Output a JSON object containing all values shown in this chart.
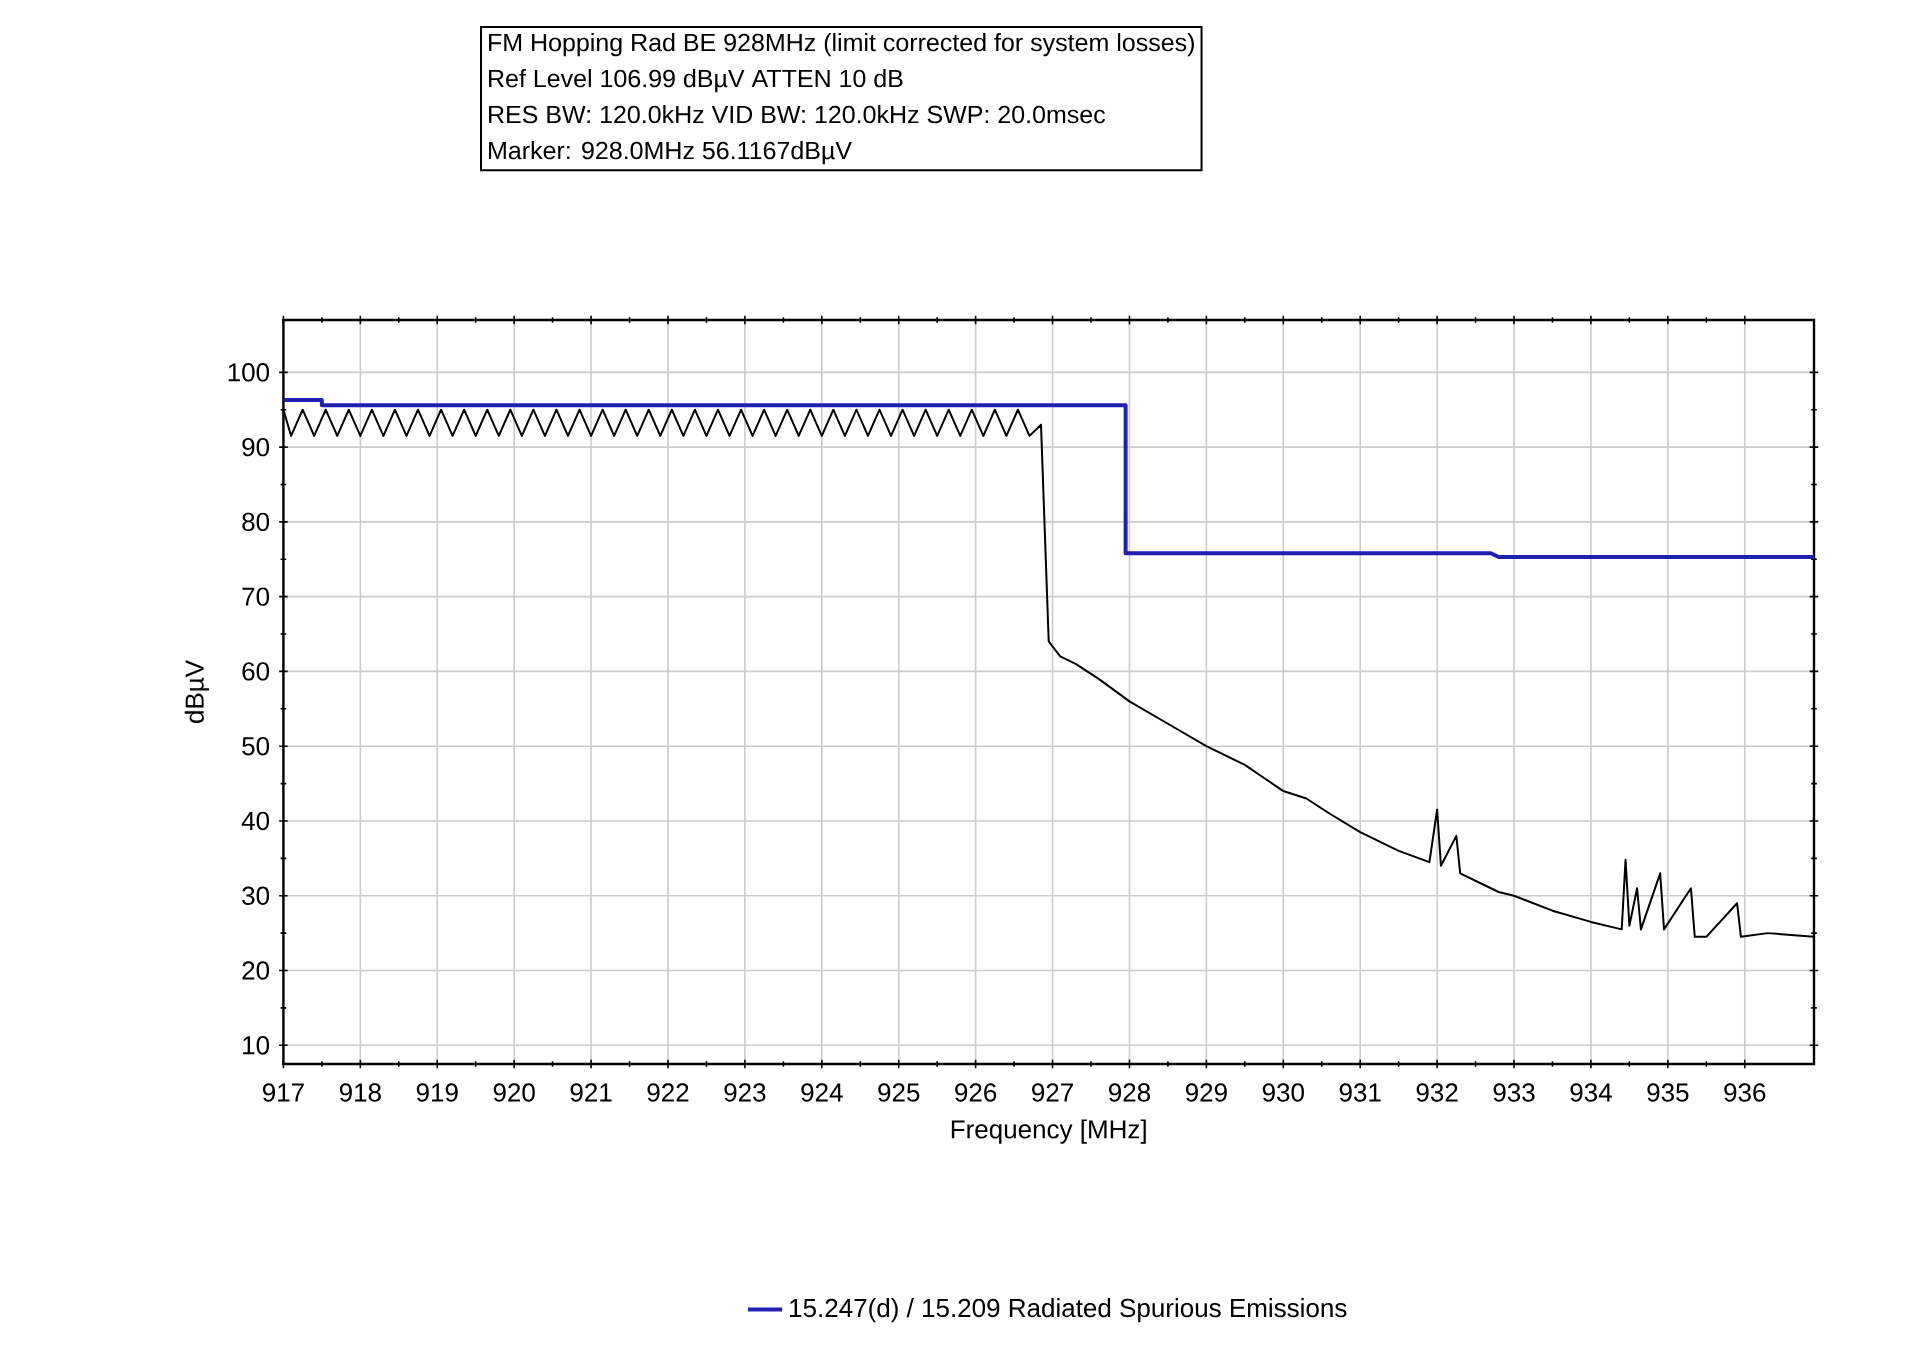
{
  "chart_data": {
    "type": "line",
    "title": "FM Hopping Rad BE 928MHz (limit corrected for system losses)",
    "annotations": [
      "Ref Level 106.99 dBµV    ATTEN 10 dB",
      "RES BW: 120.0kHz  VID BW: 120.0kHz  SWP: 20.0msec",
      "Marker: 928.0MHz  56.1167dBµV"
    ],
    "xlabel": "Frequency [MHz]",
    "ylabel": "dBµV",
    "xlim": [
      917,
      936.9
    ],
    "ylim": [
      7.5,
      107
    ],
    "xticks": [
      917,
      918,
      919,
      920,
      921,
      922,
      923,
      924,
      925,
      926,
      927,
      928,
      929,
      930,
      931,
      932,
      933,
      934,
      935,
      936
    ],
    "yticks": [
      10,
      20,
      30,
      40,
      50,
      60,
      70,
      80,
      90,
      100
    ],
    "grid": true,
    "legend": "bottom",
    "marker": "none",
    "line_style": "solid",
    "series": [
      {
        "name": "15.247(d) / 15.209 Radiated Spurious Emissions",
        "color": "#1f1fb4",
        "x": [
          917,
          917.5,
          917.5,
          927.95,
          927.95,
          932.7,
          932.8,
          936.9
        ],
        "values": [
          96.3,
          96.3,
          95.6,
          95.6,
          75.8,
          75.8,
          75.3,
          75.3
        ]
      },
      {
        "color": "#000000",
        "x": [
          917,
          917.1,
          917.25,
          917.4,
          917.55,
          917.7,
          917.85,
          918,
          918.15,
          918.3,
          918.45,
          918.6,
          918.75,
          918.9,
          919.05,
          919.2,
          919.35,
          919.5,
          919.65,
          919.8,
          919.95,
          920.1,
          920.25,
          920.4,
          920.55,
          920.7,
          920.85,
          921,
          921.15,
          921.3,
          921.45,
          921.6,
          921.75,
          921.9,
          922.05,
          922.2,
          922.35,
          922.5,
          922.65,
          922.8,
          922.95,
          923.1,
          923.25,
          923.4,
          923.55,
          923.7,
          923.85,
          924,
          924.15,
          924.3,
          924.45,
          924.6,
          924.75,
          924.9,
          925.05,
          925.2,
          925.35,
          925.5,
          925.65,
          925.8,
          925.95,
          926.1,
          926.25,
          926.4,
          926.55,
          926.7,
          926.85,
          926.95,
          927.1,
          927.3,
          927.6,
          928,
          928.5,
          929,
          929.5,
          930,
          930.3,
          930.6,
          931,
          931.5,
          931.9,
          932,
          932.05,
          932.25,
          932.3,
          932.8,
          933,
          933.5,
          934,
          934.4,
          934.45,
          934.5,
          934.6,
          934.65,
          934.9,
          934.95,
          935.3,
          935.35,
          935.5,
          935.9,
          935.95,
          936.3,
          936.9
        ],
        "values": [
          95,
          91.5,
          95,
          91.5,
          95,
          91.5,
          95,
          91.5,
          95,
          91.5,
          95,
          91.5,
          95,
          91.5,
          95,
          91.5,
          95,
          91.5,
          95,
          91.5,
          95,
          91.5,
          95,
          91.5,
          95,
          91.5,
          95,
          91.5,
          95,
          91.5,
          95,
          91.5,
          95,
          91.5,
          95,
          91.5,
          95,
          91.5,
          95,
          91.5,
          95,
          91.5,
          95,
          91.5,
          95,
          91.5,
          95,
          91.5,
          95,
          91.5,
          95,
          91.5,
          95,
          91.5,
          95,
          91.5,
          95,
          91.5,
          95,
          91.5,
          95,
          91.5,
          95,
          91.5,
          95,
          91.5,
          93,
          64,
          62,
          61,
          59,
          56,
          53,
          50,
          47.5,
          44,
          43,
          41,
          38.5,
          36,
          34.5,
          41.5,
          34,
          38,
          33,
          30.5,
          30,
          28,
          26.5,
          25.5,
          34.8,
          26,
          31,
          25.5,
          33,
          25.5,
          31,
          24.5,
          24.5,
          29,
          24.5,
          25,
          24.5
        ]
      }
    ]
  }
}
